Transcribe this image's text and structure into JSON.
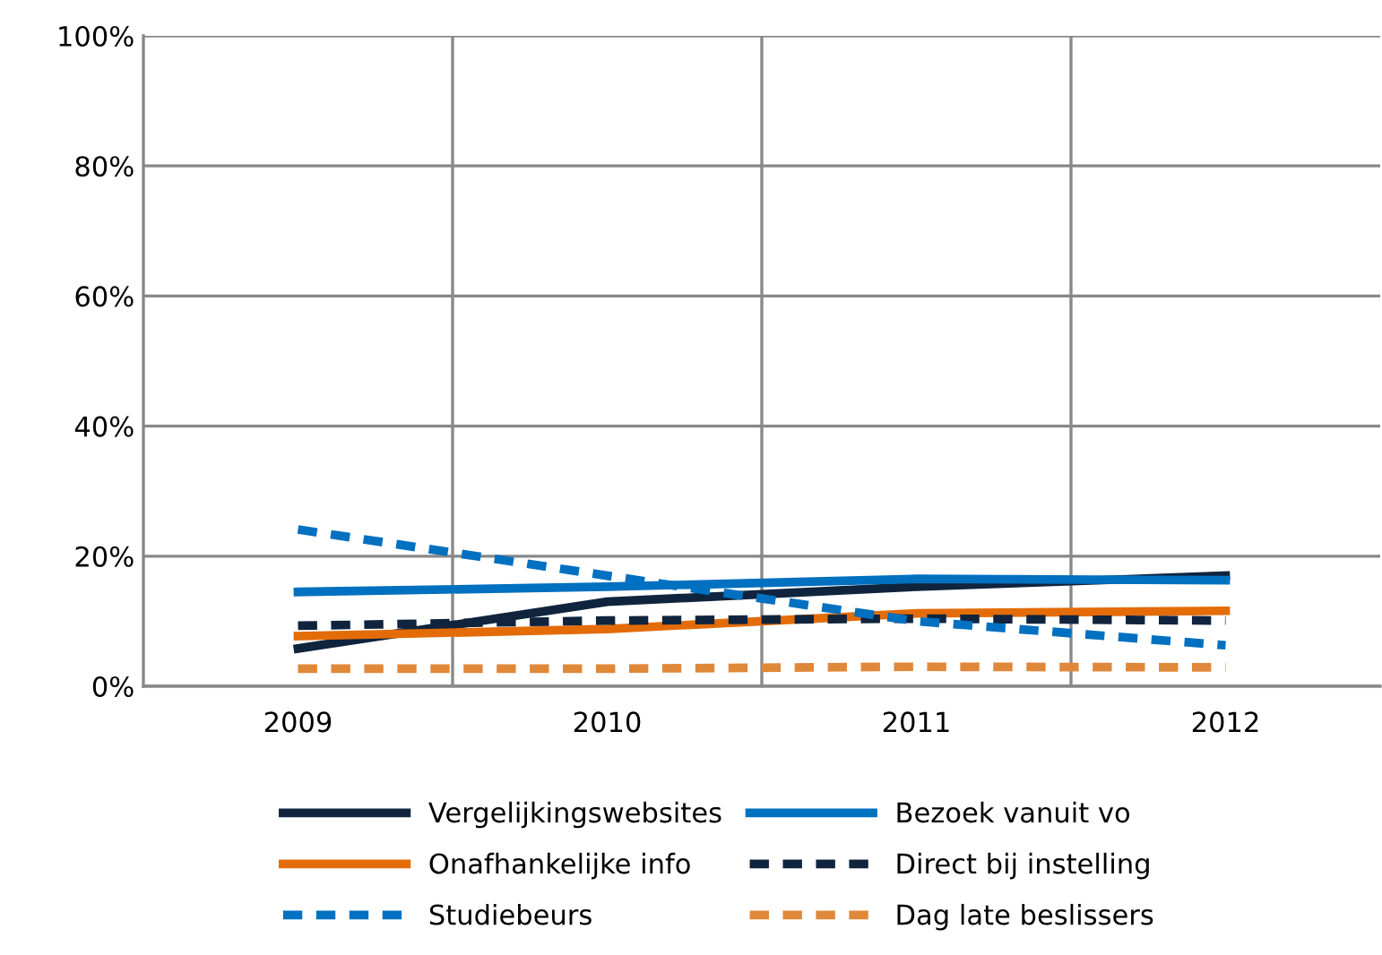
{
  "chart_data": {
    "type": "line",
    "categories": [
      "2009",
      "2010",
      "2011",
      "2012"
    ],
    "ylim": [
      0,
      100
    ],
    "yticks": [
      {
        "value": 0,
        "label": "0%"
      },
      {
        "value": 20,
        "label": "20%"
      },
      {
        "value": 40,
        "label": "40%"
      },
      {
        "value": 60,
        "label": "60%"
      },
      {
        "value": 80,
        "label": "80%"
      },
      {
        "value": 100,
        "label": "100%"
      }
    ],
    "grid": true,
    "legend": "bottom",
    "marker": "none",
    "series": [
      {
        "name": "Vergelijkingswebsites",
        "color": "#10243e",
        "line_style": "solid",
        "values": [
          5.8,
          13,
          15.3,
          17
        ]
      },
      {
        "name": "Bezoek vanuit vo",
        "color": "#0070c0",
        "line_style": "solid",
        "values": [
          14.5,
          15.3,
          16.5,
          16.3
        ]
      },
      {
        "name": "Onafhankelijke info",
        "color": "#e36c09",
        "line_style": "solid",
        "values": [
          7.7,
          8.8,
          11.2,
          11.6
        ]
      },
      {
        "name": "Direct bij instelling",
        "color": "#10243e",
        "line_style": "dashed",
        "values": [
          9.3,
          10.1,
          10.4,
          10.1
        ]
      },
      {
        "name": "Studiebeurs",
        "color": "#0070c0",
        "line_style": "dashed",
        "values": [
          24.1,
          17,
          10,
          6.3
        ]
      },
      {
        "name": "Dag late beslissers",
        "color": "#e0883a",
        "line_style": "dashed",
        "values": [
          2.7,
          2.7,
          3.0,
          2.9
        ]
      }
    ]
  }
}
